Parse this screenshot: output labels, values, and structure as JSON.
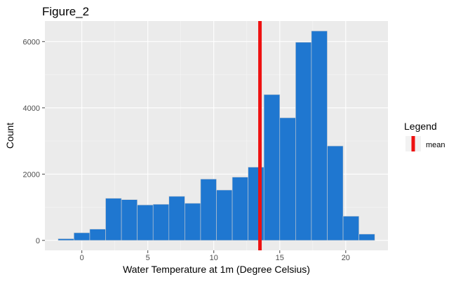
{
  "chart_data": {
    "type": "histogram",
    "title": "Figure_2",
    "xlabel": "Water Temperature at 1m (Degree Celsius)",
    "ylabel": "Count",
    "xlim": [
      -2.8,
      23.2
    ],
    "ylim": [
      -300,
      6620
    ],
    "x_ticks": [
      0,
      5,
      10,
      15,
      20
    ],
    "y_ticks": [
      0,
      2000,
      4000,
      6000
    ],
    "bin_width": 1.2,
    "bins": [
      {
        "x0": -1.8,
        "x1": -0.6,
        "count": 50
      },
      {
        "x0": -0.6,
        "x1": 0.6,
        "count": 230
      },
      {
        "x0": 0.6,
        "x1": 1.8,
        "count": 340
      },
      {
        "x0": 1.8,
        "x1": 3.0,
        "count": 1270
      },
      {
        "x0": 3.0,
        "x1": 4.2,
        "count": 1230
      },
      {
        "x0": 4.2,
        "x1": 5.4,
        "count": 1070
      },
      {
        "x0": 5.4,
        "x1": 6.6,
        "count": 1090
      },
      {
        "x0": 6.6,
        "x1": 7.8,
        "count": 1330
      },
      {
        "x0": 7.8,
        "x1": 9.0,
        "count": 1120
      },
      {
        "x0": 9.0,
        "x1": 10.2,
        "count": 1850
      },
      {
        "x0": 10.2,
        "x1": 11.4,
        "count": 1520
      },
      {
        "x0": 11.4,
        "x1": 12.6,
        "count": 1910
      },
      {
        "x0": 12.6,
        "x1": 13.8,
        "count": 2210
      },
      {
        "x0": 13.8,
        "x1": 15.0,
        "count": 4400
      },
      {
        "x0": 15.0,
        "x1": 16.2,
        "count": 3700
      },
      {
        "x0": 16.2,
        "x1": 17.4,
        "count": 5980
      },
      {
        "x0": 17.4,
        "x1": 18.6,
        "count": 6320
      },
      {
        "x0": 18.6,
        "x1": 19.8,
        "count": 2850
      },
      {
        "x0": 19.8,
        "x1": 21.0,
        "count": 730
      },
      {
        "x0": 21.0,
        "x1": 22.2,
        "count": 190
      }
    ],
    "mean_line": {
      "x": 13.5,
      "label": "mean",
      "color": "#ee1111"
    },
    "legend": {
      "title": "Legend",
      "placement": "right"
    },
    "bar_color": "#1f77d0",
    "panel_background": "#ebebeb",
    "grid": true
  }
}
